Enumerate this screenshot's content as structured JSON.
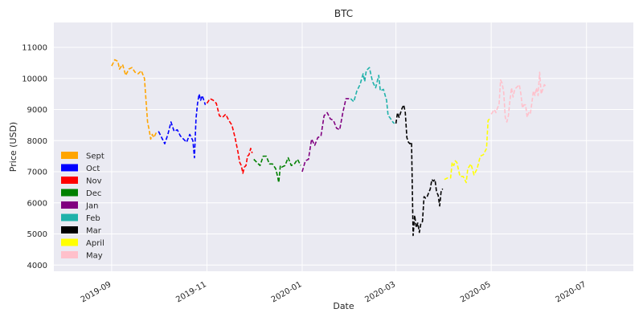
{
  "chart_data": {
    "type": "line",
    "title": "BTC",
    "xlabel": "Date",
    "ylabel": "Price (USD)",
    "grid": true,
    "legend_position": "left",
    "ylim": [
      3800,
      11800
    ],
    "xlim": [
      "2019-07-26",
      "2020-07-31"
    ],
    "y_ticks": [
      4000,
      5000,
      6000,
      7000,
      8000,
      9000,
      10000,
      11000
    ],
    "y_tick_labels": [
      "4000",
      "5000",
      "6000",
      "7000",
      "8000",
      "9000",
      "10000",
      "11000"
    ],
    "x_ticks": [
      "2019-09-01",
      "2019-11-01",
      "2020-01-01",
      "2020-03-01",
      "2020-05-01",
      "2020-07-01"
    ],
    "x_tick_labels": [
      "2019-09",
      "2019-11",
      "2020-01",
      "2020-03",
      "2020-05",
      "2020-07"
    ],
    "series": [
      {
        "name": "Sept",
        "color": "#ffa500",
        "points": [
          [
            "2019-09-01",
            10400
          ],
          [
            "2019-09-03",
            10600
          ],
          [
            "2019-09-05",
            10550
          ],
          [
            "2019-09-06",
            10300
          ],
          [
            "2019-09-08",
            10450
          ],
          [
            "2019-09-10",
            10100
          ],
          [
            "2019-09-12",
            10300
          ],
          [
            "2019-09-14",
            10350
          ],
          [
            "2019-09-16",
            10200
          ],
          [
            "2019-09-18",
            10150
          ],
          [
            "2019-09-20",
            10250
          ],
          [
            "2019-09-22",
            10000
          ],
          [
            "2019-09-24",
            8600
          ],
          [
            "2019-09-25",
            8350
          ],
          [
            "2019-09-26",
            8050
          ],
          [
            "2019-09-27",
            8200
          ],
          [
            "2019-09-28",
            8100
          ],
          [
            "2019-09-30",
            8300
          ]
        ]
      },
      {
        "name": "Oct",
        "color": "#0000ff",
        "points": [
          [
            "2019-10-01",
            8300
          ],
          [
            "2019-10-03",
            8100
          ],
          [
            "2019-10-05",
            7900
          ],
          [
            "2019-10-07",
            8200
          ],
          [
            "2019-10-09",
            8600
          ],
          [
            "2019-10-11",
            8300
          ],
          [
            "2019-10-13",
            8350
          ],
          [
            "2019-10-15",
            8150
          ],
          [
            "2019-10-17",
            8050
          ],
          [
            "2019-10-19",
            7950
          ],
          [
            "2019-10-21",
            8200
          ],
          [
            "2019-10-23",
            8000
          ],
          [
            "2019-10-24",
            7450
          ],
          [
            "2019-10-25",
            8700
          ],
          [
            "2019-10-26",
            9200
          ],
          [
            "2019-10-27",
            9500
          ],
          [
            "2019-10-28",
            9300
          ],
          [
            "2019-10-29",
            9450
          ],
          [
            "2019-10-31",
            9150
          ]
        ]
      },
      {
        "name": "Nov",
        "color": "#ff0000",
        "points": [
          [
            "2019-11-01",
            9200
          ],
          [
            "2019-11-03",
            9350
          ],
          [
            "2019-11-05",
            9300
          ],
          [
            "2019-11-07",
            9200
          ],
          [
            "2019-11-09",
            8800
          ],
          [
            "2019-11-11",
            8750
          ],
          [
            "2019-11-13",
            8850
          ],
          [
            "2019-11-15",
            8650
          ],
          [
            "2019-11-17",
            8500
          ],
          [
            "2019-11-19",
            8100
          ],
          [
            "2019-11-21",
            7600
          ],
          [
            "2019-11-22",
            7300
          ],
          [
            "2019-11-23",
            7200
          ],
          [
            "2019-11-24",
            6950
          ],
          [
            "2019-11-25",
            7150
          ],
          [
            "2019-11-26",
            7200
          ],
          [
            "2019-11-27",
            7500
          ],
          [
            "2019-11-28",
            7550
          ],
          [
            "2019-11-29",
            7750
          ],
          [
            "2019-11-30",
            7600
          ]
        ]
      },
      {
        "name": "Dec",
        "color": "#008000",
        "points": [
          [
            "2019-12-01",
            7400
          ],
          [
            "2019-12-03",
            7300
          ],
          [
            "2019-12-05",
            7200
          ],
          [
            "2019-12-07",
            7500
          ],
          [
            "2019-12-09",
            7500
          ],
          [
            "2019-12-11",
            7250
          ],
          [
            "2019-12-13",
            7250
          ],
          [
            "2019-12-15",
            7100
          ],
          [
            "2019-12-16",
            6900
          ],
          [
            "2019-12-17",
            6650
          ],
          [
            "2019-12-18",
            7200
          ],
          [
            "2019-12-19",
            7150
          ],
          [
            "2019-12-21",
            7200
          ],
          [
            "2019-12-23",
            7450
          ],
          [
            "2019-12-25",
            7200
          ],
          [
            "2019-12-27",
            7250
          ],
          [
            "2019-12-29",
            7400
          ],
          [
            "2019-12-31",
            7200
          ]
        ]
      },
      {
        "name": "Jan",
        "color": "#800080",
        "points": [
          [
            "2020-01-01",
            7000
          ],
          [
            "2020-01-03",
            7350
          ],
          [
            "2020-01-05",
            7400
          ],
          [
            "2020-01-07",
            8050
          ],
          [
            "2020-01-09",
            7850
          ],
          [
            "2020-01-11",
            8100
          ],
          [
            "2020-01-13",
            8150
          ],
          [
            "2020-01-15",
            8800
          ],
          [
            "2020-01-17",
            8900
          ],
          [
            "2020-01-19",
            8700
          ],
          [
            "2020-01-21",
            8650
          ],
          [
            "2020-01-23",
            8400
          ],
          [
            "2020-01-25",
            8350
          ],
          [
            "2020-01-27",
            8900
          ],
          [
            "2020-01-29",
            9350
          ],
          [
            "2020-01-31",
            9350
          ]
        ]
      },
      {
        "name": "Feb",
        "color": "#20b2aa",
        "points": [
          [
            "2020-02-01",
            9350
          ],
          [
            "2020-02-03",
            9250
          ],
          [
            "2020-02-05",
            9600
          ],
          [
            "2020-02-07",
            9800
          ],
          [
            "2020-02-09",
            10150
          ],
          [
            "2020-02-10",
            9900
          ],
          [
            "2020-02-11",
            10250
          ],
          [
            "2020-02-13",
            10350
          ],
          [
            "2020-02-15",
            9900
          ],
          [
            "2020-02-17",
            9700
          ],
          [
            "2020-02-19",
            10100
          ],
          [
            "2020-02-20",
            9600
          ],
          [
            "2020-02-22",
            9650
          ],
          [
            "2020-02-24",
            9300
          ],
          [
            "2020-02-25",
            8800
          ],
          [
            "2020-02-26",
            8750
          ],
          [
            "2020-02-28",
            8600
          ],
          [
            "2020-02-29",
            8550
          ]
        ]
      },
      {
        "name": "Mar",
        "color": "#000000",
        "points": [
          [
            "2020-03-01",
            8550
          ],
          [
            "2020-03-02",
            8900
          ],
          [
            "2020-03-03",
            8750
          ],
          [
            "2020-03-05",
            9050
          ],
          [
            "2020-03-06",
            9150
          ],
          [
            "2020-03-07",
            8900
          ],
          [
            "2020-03-08",
            8100
          ],
          [
            "2020-03-09",
            7950
          ],
          [
            "2020-03-10",
            7900
          ],
          [
            "2020-03-11",
            7950
          ],
          [
            "2020-03-12",
            4950
          ],
          [
            "2020-03-13",
            5600
          ],
          [
            "2020-03-14",
            5200
          ],
          [
            "2020-03-15",
            5350
          ],
          [
            "2020-03-16",
            5050
          ],
          [
            "2020-03-17",
            5350
          ],
          [
            "2020-03-18",
            5400
          ],
          [
            "2020-03-19",
            6200
          ],
          [
            "2020-03-20",
            6150
          ],
          [
            "2020-03-21",
            6200
          ],
          [
            "2020-03-23",
            6450
          ],
          [
            "2020-03-24",
            6750
          ],
          [
            "2020-03-25",
            6700
          ],
          [
            "2020-03-26",
            6750
          ],
          [
            "2020-03-27",
            6350
          ],
          [
            "2020-03-28",
            6250
          ],
          [
            "2020-03-29",
            5900
          ],
          [
            "2020-03-30",
            6400
          ],
          [
            "2020-03-31",
            6450
          ]
        ]
      },
      {
        "name": "April",
        "color": "#ffff00",
        "points": [
          [
            "2020-04-01",
            6750
          ],
          [
            "2020-04-03",
            6800
          ],
          [
            "2020-04-05",
            6800
          ],
          [
            "2020-04-06",
            7300
          ],
          [
            "2020-04-07",
            7200
          ],
          [
            "2020-04-08",
            7350
          ],
          [
            "2020-04-09",
            7300
          ],
          [
            "2020-04-11",
            6850
          ],
          [
            "2020-04-13",
            6850
          ],
          [
            "2020-04-15",
            6650
          ],
          [
            "2020-04-16",
            7100
          ],
          [
            "2020-04-18",
            7250
          ],
          [
            "2020-04-20",
            6900
          ],
          [
            "2020-04-22",
            7100
          ],
          [
            "2020-04-24",
            7500
          ],
          [
            "2020-04-26",
            7550
          ],
          [
            "2020-04-28",
            7750
          ],
          [
            "2020-04-29",
            8650
          ],
          [
            "2020-04-30",
            8700
          ]
        ]
      },
      {
        "name": "May",
        "color": "#ffc0cb",
        "points": [
          [
            "2020-05-01",
            8850
          ],
          [
            "2020-05-03",
            9000
          ],
          [
            "2020-05-04",
            8900
          ],
          [
            "2020-05-05",
            9050
          ],
          [
            "2020-05-06",
            9150
          ],
          [
            "2020-05-07",
            9950
          ],
          [
            "2020-05-08",
            9850
          ],
          [
            "2020-05-09",
            9550
          ],
          [
            "2020-05-10",
            8750
          ],
          [
            "2020-05-11",
            8600
          ],
          [
            "2020-05-12",
            8800
          ],
          [
            "2020-05-13",
            9300
          ],
          [
            "2020-05-14",
            9700
          ],
          [
            "2020-05-15",
            9400
          ],
          [
            "2020-05-16",
            9650
          ],
          [
            "2020-05-17",
            9700
          ],
          [
            "2020-05-18",
            9750
          ],
          [
            "2020-05-19",
            9800
          ],
          [
            "2020-05-20",
            9500
          ],
          [
            "2020-05-21",
            9050
          ],
          [
            "2020-05-22",
            9150
          ],
          [
            "2020-05-23",
            9150
          ],
          [
            "2020-05-24",
            8750
          ],
          [
            "2020-05-25",
            8900
          ],
          [
            "2020-05-26",
            8850
          ],
          [
            "2020-05-27",
            9200
          ],
          [
            "2020-05-28",
            9600
          ],
          [
            "2020-05-29",
            9450
          ],
          [
            "2020-05-30",
            9700
          ],
          [
            "2020-05-31",
            9450
          ],
          [
            "2020-06-01",
            10200
          ],
          [
            "2020-06-02",
            9500
          ],
          [
            "2020-06-03",
            9650
          ],
          [
            "2020-06-04",
            9800
          ],
          [
            "2020-06-05",
            9750
          ]
        ]
      }
    ]
  }
}
